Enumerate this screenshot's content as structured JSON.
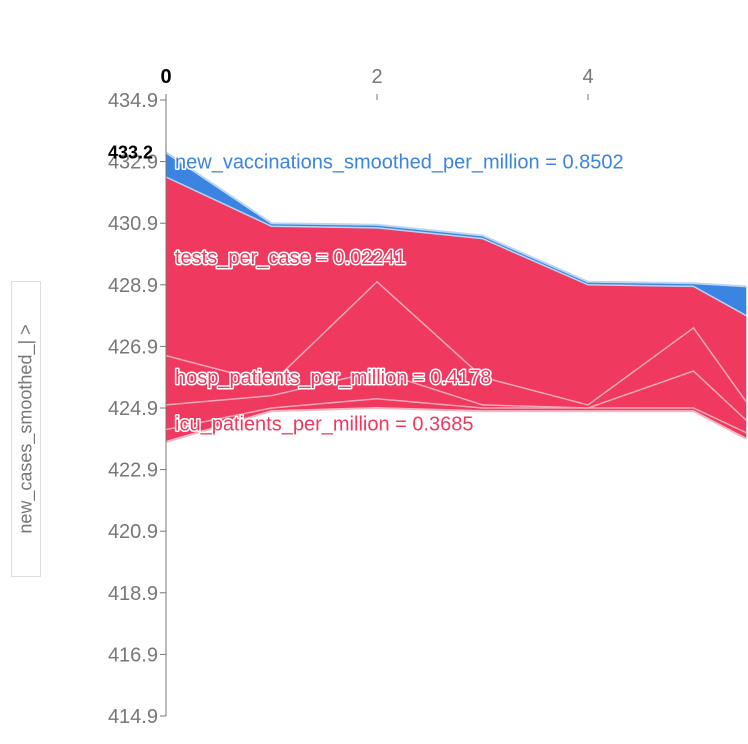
{
  "y_selector": {
    "label": "new_cases_smoothed_| >"
  },
  "chart_data": {
    "type": "area",
    "title": "",
    "xlabel": "",
    "ylabel": "new_cases_smoothed_|",
    "x_ticks": [
      0,
      2,
      4
    ],
    "x_ticks_text": [
      "0",
      "2",
      "4"
    ],
    "x_active": "0",
    "xlim": [
      0,
      5.5
    ],
    "y_ticks": [
      434.9,
      432.9,
      430.9,
      428.9,
      426.9,
      424.9,
      422.9,
      420.9,
      418.9,
      416.9,
      414.9
    ],
    "y_ticks_text": [
      "434.9",
      "432.9",
      "430.9",
      "428.9",
      "426.9",
      "424.9",
      "422.9",
      "420.9",
      "418.9",
      "416.9",
      "414.9"
    ],
    "ylim": [
      414.9,
      434.9
    ],
    "base_value": "433.2",
    "colors": {
      "positive": "#f0395e",
      "negative": "#3b84e2",
      "negative_light": "#b9d6f2",
      "positive_light": "#f7b6c4"
    },
    "x": [
      0,
      1,
      2,
      3,
      4,
      5,
      5.5
    ],
    "top": [
      433.2,
      430.9,
      430.85,
      430.5,
      429.0,
      428.95,
      428.85
    ],
    "blue_bottom": [
      432.4,
      430.8,
      430.75,
      430.4,
      428.9,
      428.85,
      427.9
    ],
    "red_bottom": [
      423.8,
      424.8,
      424.9,
      424.8,
      424.8,
      424.8,
      423.9
    ],
    "inner_lines": [
      [
        426.6,
        425.7,
        429.0,
        425.9,
        425.0,
        427.5,
        425.1
      ],
      [
        425.0,
        425.3,
        426.1,
        425.0,
        424.9,
        426.1,
        424.5
      ],
      [
        424.2,
        424.9,
        425.2,
        424.9,
        424.9,
        424.9,
        424.1
      ]
    ],
    "features": [
      {
        "text": "new_vaccinations_smoothed_per_million = 0.8502",
        "y": 432.9,
        "color": "#3b84e2"
      },
      {
        "text": "tests_per_case = 0.02241",
        "y": 429.8,
        "color": "#f0395e"
      },
      {
        "text": "hosp_patients_per_million = 0.4178",
        "y": 425.9,
        "color": "#f0395e"
      },
      {
        "text": "icu_patients_per_million = 0.3685",
        "y": 424.4,
        "color": "#f0395e"
      }
    ]
  }
}
